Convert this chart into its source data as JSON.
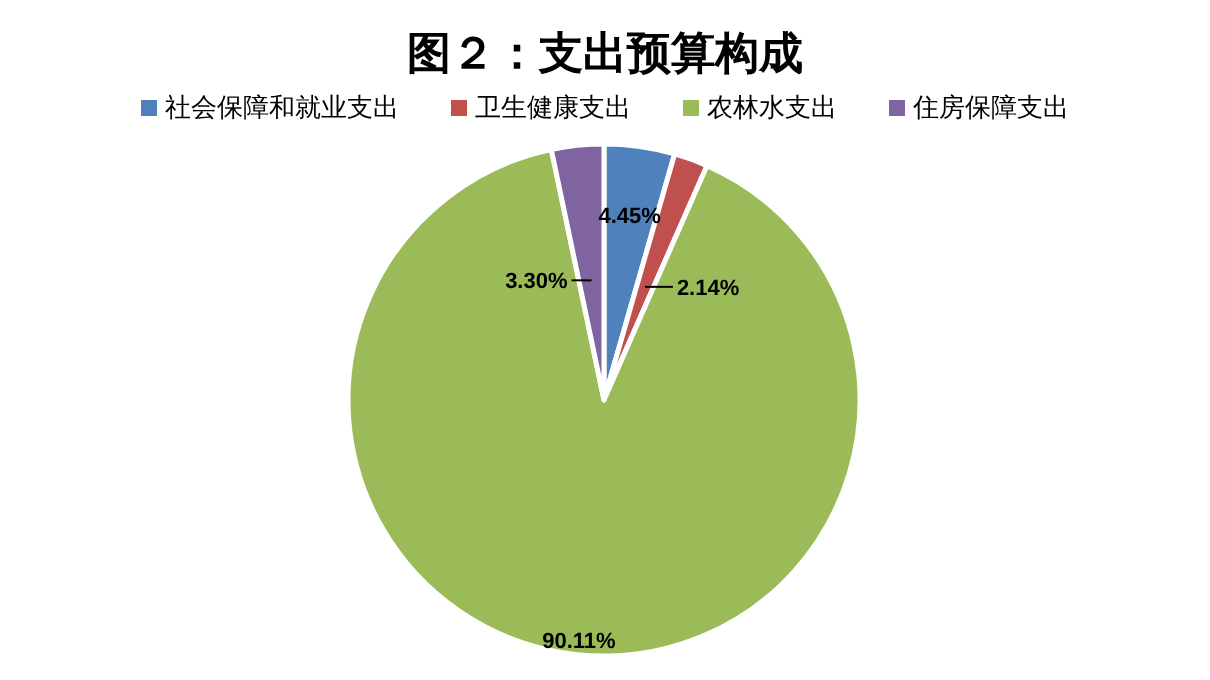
{
  "chart_data": {
    "type": "pie",
    "title": "图２：支出预算构成",
    "categories": [
      "社会保障和就业支出",
      "卫生健康支出",
      "农林水支出",
      "住房保障支出"
    ],
    "values": [
      4.45,
      2.14,
      90.11,
      3.3
    ],
    "colors": [
      "#4f81bd",
      "#c0504d",
      "#9bbb59",
      "#8064a2"
    ],
    "value_labels": [
      "4.45%",
      "2.14%",
      "90.11%",
      "3.30%"
    ],
    "legend": "top"
  }
}
